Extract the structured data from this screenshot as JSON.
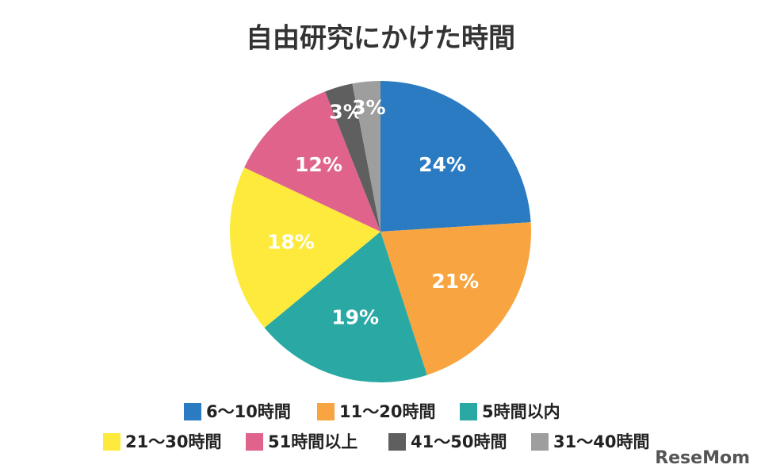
{
  "chart_data": {
    "type": "pie",
    "title": "自由研究にかけた時間",
    "categories": [
      "6〜10時間",
      "11〜20時間",
      "5時間以内",
      "21〜30時間",
      "51時間以上",
      "41〜50時間",
      "31〜40時間"
    ],
    "values": [
      24,
      21,
      19,
      18,
      12,
      3,
      3
    ],
    "value_labels": [
      "24%",
      "21%",
      "19%",
      "18%",
      "12%",
      "3%",
      "3%"
    ],
    "colors": [
      "#2a7bc1",
      "#f8a541",
      "#2aa8a3",
      "#fdea3c",
      "#e0638b",
      "#5f5f5f",
      "#9e9e9e"
    ],
    "watermark": "ReseMom"
  }
}
